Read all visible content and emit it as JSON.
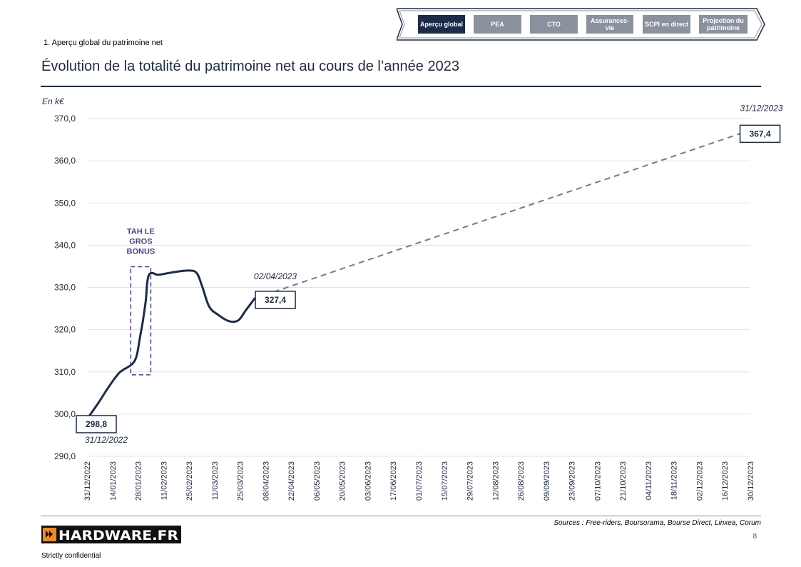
{
  "nav": {
    "tabs": [
      {
        "label": "Aperçu global",
        "active": true
      },
      {
        "label": "PEA",
        "active": false
      },
      {
        "label": "CTO",
        "active": false
      },
      {
        "label": "Assurances-vie",
        "active": false
      },
      {
        "label": "SCPI en direct",
        "active": false
      },
      {
        "label": "Projection du patrimoine",
        "active": false
      }
    ]
  },
  "section_label": "1. Aperçu global du patrimoine net",
  "title": "Évolution de la totalité du patrimoine net au cours de l’année 2023",
  "unit_label": "En k€",
  "colors": {
    "navy": "#1c2b4a",
    "grey": "#8a929e",
    "purple": "#4b3f8f",
    "logo_orange": "#f08a1c"
  },
  "chart_data": {
    "type": "line",
    "title": "Évolution de la totalité du patrimoine net au cours de l’année 2023",
    "ylabel": "En k€",
    "ylim": [
      290,
      370
    ],
    "yticks": [
      "290,0",
      "300,0",
      "310,0",
      "320,0",
      "330,0",
      "340,0",
      "350,0",
      "360,0",
      "370,0"
    ],
    "xlim": [
      "2022-12-31",
      "2023-12-30"
    ],
    "xticks": [
      "31/12/2022",
      "14/01/2023",
      "28/01/2023",
      "11/02/2023",
      "25/02/2023",
      "11/03/2023",
      "25/03/2023",
      "08/04/2023",
      "22/04/2023",
      "06/05/2023",
      "20/05/2023",
      "03/06/2023",
      "17/06/2023",
      "01/07/2023",
      "15/07/2023",
      "29/07/2023",
      "12/08/2023",
      "26/08/2023",
      "09/09/2023",
      "23/09/2023",
      "07/10/2023",
      "21/10/2023",
      "04/11/2023",
      "18/11/2023",
      "02/12/2023",
      "16/12/2023",
      "30/12/2023"
    ],
    "grid": true,
    "series": [
      {
        "style": "solid",
        "x": [
          "2022-12-31",
          "2023-01-06",
          "2023-01-12",
          "2023-01-18",
          "2023-01-26",
          "2023-01-29",
          "2023-02-01",
          "2023-02-02",
          "2023-02-03",
          "2023-02-05",
          "2023-02-08",
          "2023-02-15",
          "2023-02-24",
          "2023-03-01",
          "2023-03-04",
          "2023-03-08",
          "2023-03-13",
          "2023-03-19",
          "2023-03-24",
          "2023-03-28",
          "2023-04-02"
        ],
        "values": [
          298.8,
          302.5,
          306.5,
          309.9,
          312.5,
          318,
          326,
          331,
          333,
          333.4,
          333.0,
          333.5,
          334.0,
          333.5,
          330.5,
          325.5,
          323.5,
          322.0,
          322.2,
          324.5,
          327.4
        ]
      },
      {
        "style": "dashed",
        "x": [
          "2023-04-02",
          "2023-12-31"
        ],
        "values": [
          327.4,
          367.4
        ]
      }
    ],
    "annotations": [
      {
        "text": "298,8",
        "x": "2022-12-31",
        "y": 298.8,
        "boxed": true
      },
      {
        "text": "31/12/2022",
        "x": "2022-12-31",
        "y": 298.8,
        "style": "italic"
      },
      {
        "text": "327,4",
        "x": "2023-04-02",
        "y": 327.4,
        "boxed": true
      },
      {
        "text": "02/04/2023",
        "x": "2023-04-02",
        "y": 327.4,
        "style": "italic"
      },
      {
        "text": "367,4",
        "x": "2023-12-31",
        "y": 367.4,
        "boxed": true
      },
      {
        "text": "31/12/2023",
        "x": "2023-12-31",
        "y": 367.4,
        "style": "italic"
      }
    ],
    "highlight": {
      "text": "TAH LE GROS BONUS",
      "x_range": [
        "2023-01-24",
        "2023-02-04"
      ],
      "y_range": [
        309.3,
        334.9
      ],
      "color": "#4b3f8f"
    }
  },
  "footer": {
    "sources": "Sources : Free-riders, Boursorama, Bourse Direct, Linxea, Corum",
    "page_number": "8",
    "confidential": "Strictly confidential",
    "logo_text": "HARDWARE.FR"
  }
}
